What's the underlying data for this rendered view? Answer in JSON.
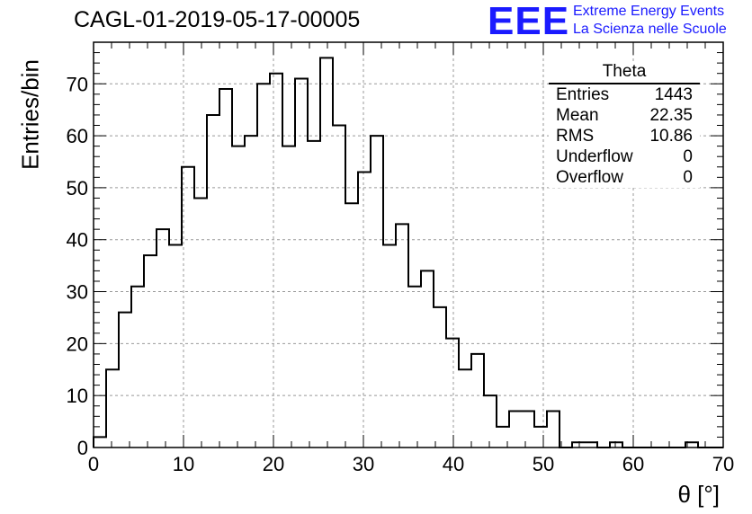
{
  "title": "CAGL-01-2019-05-17-00005",
  "logo": {
    "mark": "EEE",
    "line1": "Extreme Energy Events",
    "line2": "La Scienza nelle Scuole",
    "color": "#1a1aff"
  },
  "stats": {
    "name": "Theta",
    "rows": [
      {
        "label": "Entries",
        "value": "1443"
      },
      {
        "label": "Mean",
        "value": "22.35"
      },
      {
        "label": "RMS",
        "value": "10.86"
      },
      {
        "label": "Underflow",
        "value": "0"
      },
      {
        "label": "Overflow",
        "value": "0"
      }
    ]
  },
  "chart_data": {
    "type": "bar",
    "title": "CAGL-01-2019-05-17-00005",
    "xlabel": "θ [°]",
    "ylabel": "Entries/bin",
    "xlim": [
      0,
      70
    ],
    "ylim": [
      0,
      78
    ],
    "bin_width": 1.4,
    "x_ticks": [
      0,
      10,
      20,
      30,
      40,
      50,
      60,
      70
    ],
    "y_ticks": [
      0,
      10,
      20,
      30,
      40,
      50,
      60,
      70
    ],
    "grid": true,
    "values": [
      2,
      15,
      26,
      31,
      37,
      42,
      39,
      54,
      48,
      64,
      69,
      58,
      60,
      70,
      72,
      58,
      71,
      59,
      75,
      62,
      47,
      53,
      60,
      39,
      43,
      31,
      34,
      27,
      21,
      15,
      18,
      10,
      4,
      7,
      7,
      4,
      7,
      0,
      1,
      1,
      0,
      1,
      0,
      0,
      0,
      0,
      0,
      1,
      0,
      0
    ]
  }
}
